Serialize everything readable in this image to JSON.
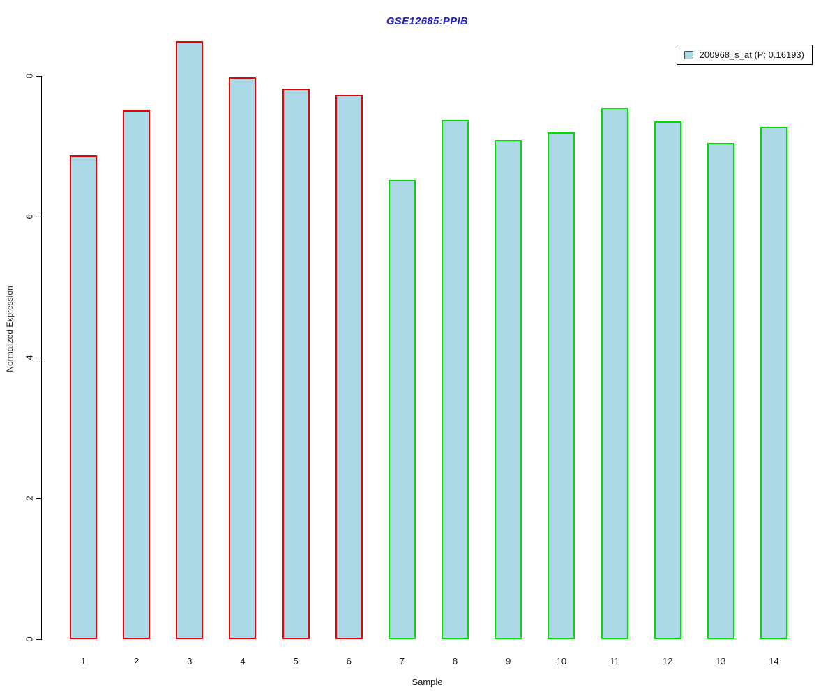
{
  "title": {
    "text": "GSE12685:PPIB",
    "color": "#2222CC"
  },
  "legend": {
    "label": "200968_s_at (P: 0.16193)",
    "swatch_fill": "#ADD8E6",
    "swatch_border": "#555555",
    "position": "top-right"
  },
  "axes": {
    "x_title": "Sample",
    "y_title": "Normalized Expression"
  },
  "chart_data": {
    "type": "bar",
    "title": "GSE12685:PPIB",
    "xlabel": "Sample",
    "ylabel": "Normalized Expression",
    "categories": [
      "1",
      "2",
      "3",
      "4",
      "5",
      "6",
      "7",
      "8",
      "9",
      "10",
      "11",
      "12",
      "13",
      "14"
    ],
    "series": [
      {
        "name": "200968_s_at (P: 0.16193)",
        "values": [
          6.87,
          7.51,
          8.5,
          7.98,
          7.82,
          7.73,
          6.52,
          7.38,
          7.09,
          7.2,
          7.54,
          7.36,
          7.05,
          7.28
        ]
      }
    ],
    "bar_fill": "#ADD8E6",
    "bar_border_colors": [
      "#EE0000",
      "#EE0000",
      "#EE0000",
      "#EE0000",
      "#EE0000",
      "#EE0000",
      "#00DD00",
      "#00DD00",
      "#00DD00",
      "#00DD00",
      "#00DD00",
      "#00DD00",
      "#00DD00",
      "#00DD00"
    ],
    "group_borders": [
      {
        "samples": "1-6",
        "color": "#EE0000"
      },
      {
        "samples": "7-14",
        "color": "#00DD00"
      }
    ],
    "ylim": [
      0,
      8.58
    ],
    "yticks": [
      0,
      2,
      4,
      6,
      8
    ],
    "grid": false,
    "legend_position": "top-right"
  }
}
